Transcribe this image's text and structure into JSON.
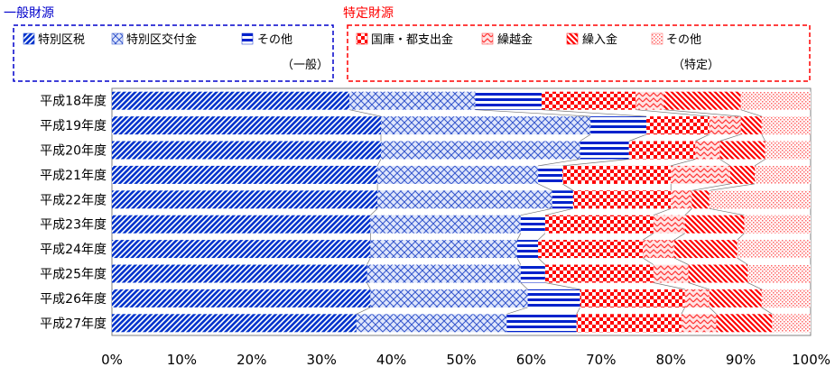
{
  "legend_groups": [
    {
      "title": "一般財源",
      "color": "#0000cc",
      "footer": "（一般）",
      "items": [
        {
          "label": "特別区税",
          "pattern": "diag-up"
        },
        {
          "label": "特別区交付金",
          "pattern": "cross"
        },
        {
          "label": "その他",
          "pattern": "horiz"
        }
      ]
    },
    {
      "title": "特定財源",
      "color": "#ff0000",
      "footer": "（特定）",
      "items": [
        {
          "label": "国庫・都支出金",
          "pattern": "checker"
        },
        {
          "label": "繰越金",
          "pattern": "zigzag"
        },
        {
          "label": "繰入金",
          "pattern": "diag-down"
        },
        {
          "label": "その他",
          "pattern": "dots"
        }
      ]
    }
  ],
  "chart_data": {
    "type": "bar",
    "orientation": "horizontal",
    "stacked": "percent",
    "categories": [
      "平成18年度",
      "平成19年度",
      "平成20年度",
      "平成21年度",
      "平成22年度",
      "平成23年度",
      "平成24年度",
      "平成25年度",
      "平成26年度",
      "平成27年度"
    ],
    "x_ticks": [
      "0%",
      "10%",
      "20%",
      "30%",
      "40%",
      "50%",
      "60%",
      "70%",
      "80%",
      "90%",
      "100%"
    ],
    "xlim": [
      0,
      100
    ],
    "series_lines": true,
    "series": [
      {
        "name": "特別区税",
        "group": "一般財源",
        "pattern": "diag-up",
        "color": "#0033cc",
        "values": [
          34,
          38.5,
          38.5,
          38,
          38,
          37,
          37,
          36.5,
          37,
          35
        ]
      },
      {
        "name": "特別区交付金",
        "group": "一般財源",
        "pattern": "cross",
        "color": "#3355cc",
        "values": [
          18,
          30,
          28.5,
          23,
          25,
          21.5,
          21,
          22,
          22.5,
          21.5
        ]
      },
      {
        "name": "その他",
        "group": "一般財源",
        "pattern": "horiz",
        "color": "#0022cc",
        "values": [
          9.5,
          8,
          7,
          3.5,
          3,
          3.5,
          3,
          3.5,
          7.5,
          10
        ]
      },
      {
        "name": "国庫・都支出金",
        "group": "特定財源",
        "pattern": "checker",
        "color": "#ff0000",
        "values": [
          13.5,
          9,
          9.5,
          15.5,
          14,
          15.5,
          15,
          15.5,
          15,
          15
        ]
      },
      {
        "name": "繰越金",
        "group": "特定財源",
        "pattern": "zigzag",
        "color": "#ff3333",
        "values": [
          4,
          4.5,
          3.5,
          8.5,
          3,
          4.5,
          4.5,
          5,
          3.5,
          5
        ]
      },
      {
        "name": "繰入金",
        "group": "特定財源",
        "pattern": "diag-down",
        "color": "#ff0000",
        "values": [
          11,
          3,
          6.5,
          3.5,
          2.5,
          8.5,
          9,
          8.5,
          7.5,
          8
        ]
      },
      {
        "name": "その他",
        "group": "特定財源",
        "pattern": "dots",
        "color": "#ff6666",
        "values": [
          10,
          7,
          6.5,
          8,
          14.5,
          9.5,
          10.5,
          9,
          7,
          5.5
        ]
      }
    ]
  }
}
